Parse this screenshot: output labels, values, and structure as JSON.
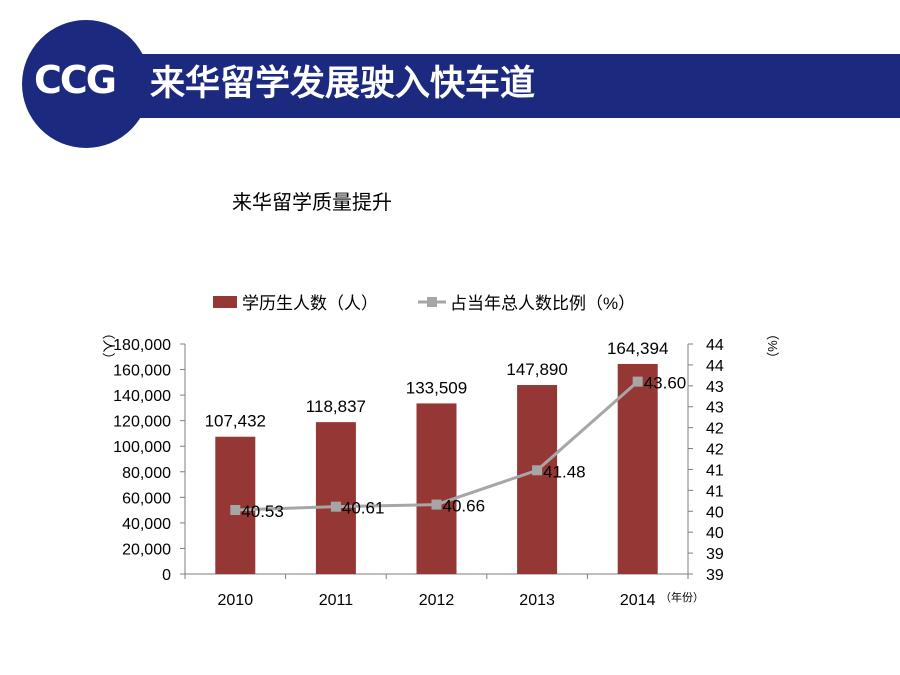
{
  "header": {
    "logo": "CCG",
    "title": "来华留学发展驶入快车道"
  },
  "subtitle": "来华留学质量提升",
  "chart_data": {
    "type": "bar",
    "categories": [
      "2010",
      "2011",
      "2012",
      "2013",
      "2014"
    ],
    "x_unit_label": "（年份）",
    "y_left_unit": "（人）",
    "y_right_unit": "（%）",
    "y_left_ticks": [
      "0",
      "20,000",
      "40,000",
      "60,000",
      "80,000",
      "100,000",
      "120,000",
      "140,000",
      "160,000",
      "180,000"
    ],
    "y_right_ticks": [
      "39",
      "39",
      "40",
      "40",
      "41",
      "41",
      "42",
      "42",
      "43",
      "43",
      "44",
      "44"
    ],
    "ylim_left": [
      0,
      180000
    ],
    "ylim_right": [
      39,
      44.5
    ],
    "grid": false,
    "legend_position": "top",
    "series": [
      {
        "name": "学历生人数（人）",
        "type": "bar",
        "axis": "left",
        "color": "#953735",
        "values": [
          107432,
          118837,
          133509,
          147890,
          164394
        ],
        "labels": [
          "107,432",
          "118,837",
          "133,509",
          "147,890",
          "164,394"
        ]
      },
      {
        "name": "占当年总人数比例（%）",
        "type": "line",
        "axis": "right",
        "color": "#a6a6a6",
        "values": [
          40.53,
          40.61,
          40.66,
          41.48,
          43.6
        ],
        "labels": [
          "40.53",
          "40.61",
          "40.66",
          "41.48",
          "43.60"
        ]
      }
    ]
  }
}
